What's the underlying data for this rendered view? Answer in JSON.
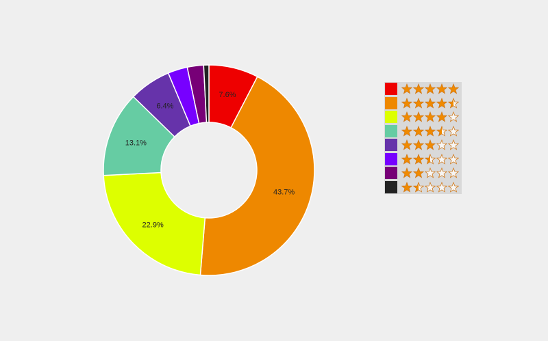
{
  "chart_data": {
    "type": "pie",
    "donut": true,
    "title": "",
    "slices": [
      {
        "label": "5 stars",
        "rating": 5,
        "value": 7.6,
        "pct_label": "7.6%",
        "color": "#ee0000"
      },
      {
        "label": "4.5 stars",
        "rating": 4.5,
        "value": 43.7,
        "pct_label": "43.7%",
        "color": "#ee8800"
      },
      {
        "label": "4 stars",
        "rating": 4,
        "value": 22.9,
        "pct_label": "22.9%",
        "color": "#ddff00"
      },
      {
        "label": "3.5 stars",
        "rating": 3.5,
        "value": 13.1,
        "pct_label": "13.1%",
        "color": "#66cca3"
      },
      {
        "label": "3 stars",
        "rating": 3,
        "value": 6.4,
        "pct_label": "6.4%",
        "color": "#6633aa"
      },
      {
        "label": "2.5 stars",
        "rating": 2.5,
        "value": 3.0,
        "pct_label": "",
        "color": "#7700ff"
      },
      {
        "label": "2 stars",
        "rating": 2,
        "value": 2.5,
        "pct_label": "",
        "color": "#770077"
      },
      {
        "label": "1.5 stars",
        "rating": 1.5,
        "value": 0.8,
        "pct_label": "",
        "color": "#222222"
      }
    ],
    "legend_position": "right"
  }
}
